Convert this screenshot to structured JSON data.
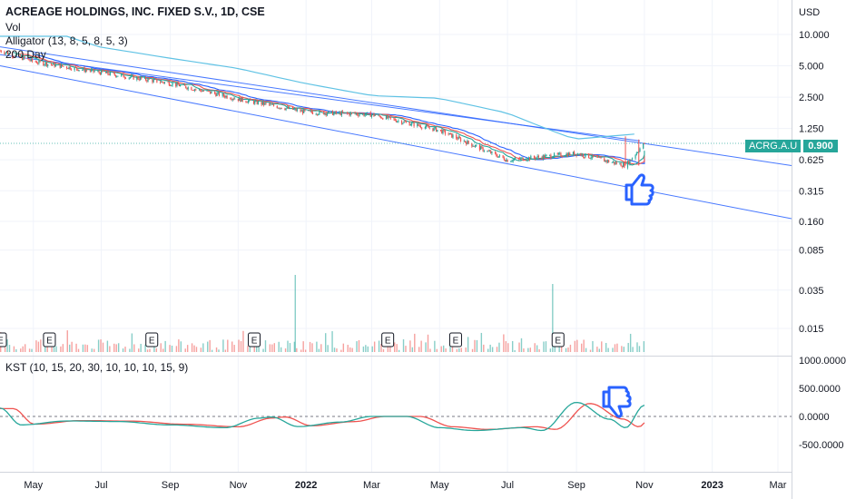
{
  "header": {
    "title": "ACREAGE HOLDINGS, INC. FIXED S.V., 1D, CSE",
    "indicators": [
      "Vol",
      "Alligator (13, 8, 5, 8, 5, 3)",
      "200 Day"
    ]
  },
  "kst": {
    "label": "KST (10, 15, 20, 30, 10, 10, 10, 15, 9)"
  },
  "price_badge": {
    "symbol": "ACRG.A.U",
    "value": "0.900"
  },
  "earnings_marker": "E",
  "colors": {
    "up": "#26a69a",
    "down": "#ef5350",
    "channel": "#2962ff",
    "ma200": "#5fc2e4",
    "kst": "#26a69a",
    "signal": "#ef5350",
    "alligator_jaw": "#2962ff",
    "alligator_teeth": "#ef5350",
    "alligator_lips": "#26a69a",
    "thumb": "#2962ff"
  },
  "chart_data": [
    {
      "type": "candlestick",
      "title": "ACREAGE HOLDINGS, INC. FIXED S.V., 1D, CSE",
      "y_scale": "log",
      "y_unit": "USD",
      "y_ticks": [
        "10.000",
        "5.000",
        "2.500",
        "1.250",
        "0.625",
        "0.315",
        "0.160",
        "0.085",
        "0.035",
        "0.015"
      ],
      "x_ticks": [
        "May",
        "Jul",
        "Sep",
        "Nov",
        "2022",
        "Mar",
        "May",
        "Jul",
        "Sep",
        "Nov",
        "2023",
        "Mar"
      ],
      "last_price": 0.9,
      "price_path": [
        {
          "date": "2021-04-01",
          "price": 7.0
        },
        {
          "date": "2021-05-01",
          "price": 5.5
        },
        {
          "date": "2021-07-01",
          "price": 4.3
        },
        {
          "date": "2021-09-01",
          "price": 3.4
        },
        {
          "date": "2021-11-01",
          "price": 2.4
        },
        {
          "date": "2022-01-01",
          "price": 1.8
        },
        {
          "date": "2022-03-01",
          "price": 1.7
        },
        {
          "date": "2022-05-01",
          "price": 1.2
        },
        {
          "date": "2022-07-01",
          "price": 0.62
        },
        {
          "date": "2022-09-01",
          "price": 0.72
        },
        {
          "date": "2022-10-15",
          "price": 0.55
        },
        {
          "date": "2022-11-01",
          "price": 0.9
        }
      ],
      "earnings_dates": [
        "2021-04-01",
        "2021-05-15",
        "2021-08-15",
        "2021-11-15",
        "2022-03-15",
        "2022-05-15",
        "2022-08-15"
      ],
      "volume_peaks": [
        "2021-12-25",
        "2022-08-10"
      ],
      "legend": [
        "Vol",
        "Alligator (13, 8, 5, 8, 5, 3)",
        "200 Day"
      ]
    },
    {
      "type": "line",
      "title": "KST (10, 15, 20, 30, 10, 10, 10, 15, 9)",
      "y_ticks": [
        "1000.0000",
        "500.0000",
        "0.0000",
        "-500.0000"
      ],
      "ylim": [
        -800,
        1000
      ],
      "series": [
        {
          "name": "KST",
          "values": [
            {
              "date": "2021-04-01",
              "value": 150
            },
            {
              "date": "2021-04-20",
              "value": -150
            },
            {
              "date": "2021-06-01",
              "value": -80
            },
            {
              "date": "2021-07-15",
              "value": -90
            },
            {
              "date": "2021-09-01",
              "value": -150
            },
            {
              "date": "2021-10-20",
              "value": -200
            },
            {
              "date": "2021-11-20",
              "value": -30
            },
            {
              "date": "2021-12-01",
              "value": -10
            },
            {
              "date": "2021-12-25",
              "value": -180
            },
            {
              "date": "2022-02-01",
              "value": -100
            },
            {
              "date": "2022-03-01",
              "value": 0
            },
            {
              "date": "2022-04-01",
              "value": 0
            },
            {
              "date": "2022-05-01",
              "value": -200
            },
            {
              "date": "2022-06-01",
              "value": -250
            },
            {
              "date": "2022-07-15",
              "value": -200
            },
            {
              "date": "2022-08-01",
              "value": -250
            },
            {
              "date": "2022-09-01",
              "value": 250
            },
            {
              "date": "2022-10-01",
              "value": -50
            },
            {
              "date": "2022-10-15",
              "value": -200
            },
            {
              "date": "2022-11-01",
              "value": 200
            }
          ]
        }
      ]
    }
  ]
}
